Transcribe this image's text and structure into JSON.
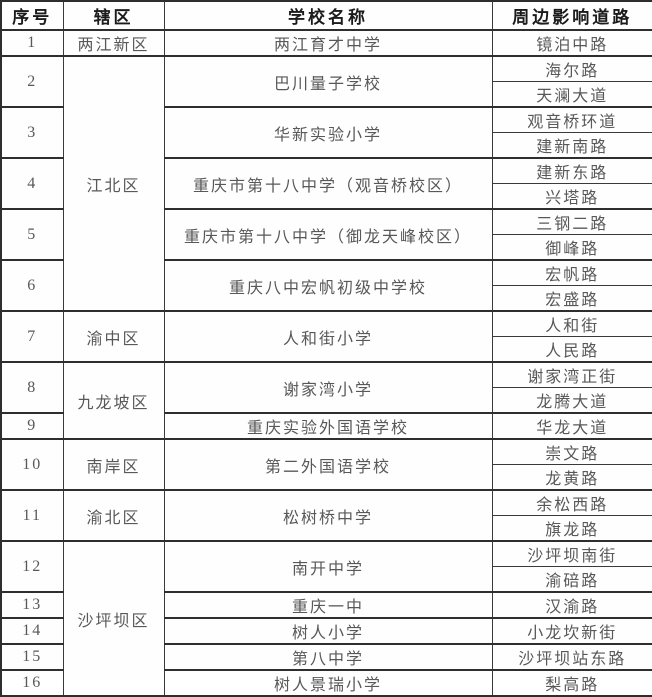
{
  "table": {
    "headers": [
      "序号",
      "辖区",
      "学校名称",
      "周边影响道路"
    ],
    "districts": [
      {
        "name": "两江新区",
        "schools": [
          {
            "no": "1",
            "name": "两江育才中学",
            "roads": [
              "镜泊中路"
            ]
          }
        ]
      },
      {
        "name": "江北区",
        "schools": [
          {
            "no": "2",
            "name": "巴川量子学校",
            "roads": [
              "海尔路",
              "天澜大道"
            ]
          },
          {
            "no": "3",
            "name": "华新实验小学",
            "roads": [
              "观音桥环道",
              "建新南路"
            ]
          },
          {
            "no": "4",
            "name": "重庆市第十八中学（观音桥校区）",
            "roads": [
              "建新东路",
              "兴塔路"
            ]
          },
          {
            "no": "5",
            "name": "重庆市第十八中学（御龙天峰校区）",
            "roads": [
              "三钢二路",
              "御峰路"
            ]
          },
          {
            "no": "6",
            "name": "重庆八中宏帆初级中学校",
            "roads": [
              "宏帆路",
              "宏盛路"
            ]
          }
        ]
      },
      {
        "name": "渝中区",
        "schools": [
          {
            "no": "7",
            "name": "人和街小学",
            "roads": [
              "人和街",
              "人民路"
            ]
          }
        ]
      },
      {
        "name": "九龙坡区",
        "schools": [
          {
            "no": "8",
            "name": "谢家湾小学",
            "roads": [
              "谢家湾正街",
              "龙腾大道"
            ]
          },
          {
            "no": "9",
            "name": "重庆实验外国语学校",
            "roads": [
              "华龙大道"
            ]
          }
        ]
      },
      {
        "name": "南岸区",
        "schools": [
          {
            "no": "10",
            "name": "第二外国语学校",
            "roads": [
              "崇文路",
              "龙黄路"
            ]
          }
        ]
      },
      {
        "name": "渝北区",
        "schools": [
          {
            "no": "11",
            "name": "松树桥中学",
            "roads": [
              "余松西路",
              "旗龙路"
            ]
          }
        ]
      },
      {
        "name": "沙坪坝区",
        "schools": [
          {
            "no": "12",
            "name": "南开中学",
            "roads": [
              "沙坪坝南街",
              "渝碚路"
            ]
          },
          {
            "no": "13",
            "name": "重庆一中",
            "roads": [
              "汉渝路"
            ]
          },
          {
            "no": "14",
            "name": "树人小学",
            "roads": [
              "小龙坎新街"
            ]
          },
          {
            "no": "15",
            "name": "第八中学",
            "roads": [
              "沙坪坝站东路"
            ]
          },
          {
            "no": "16",
            "name": "树人景瑞小学",
            "roads": [
              "梨高路"
            ]
          }
        ]
      }
    ]
  }
}
